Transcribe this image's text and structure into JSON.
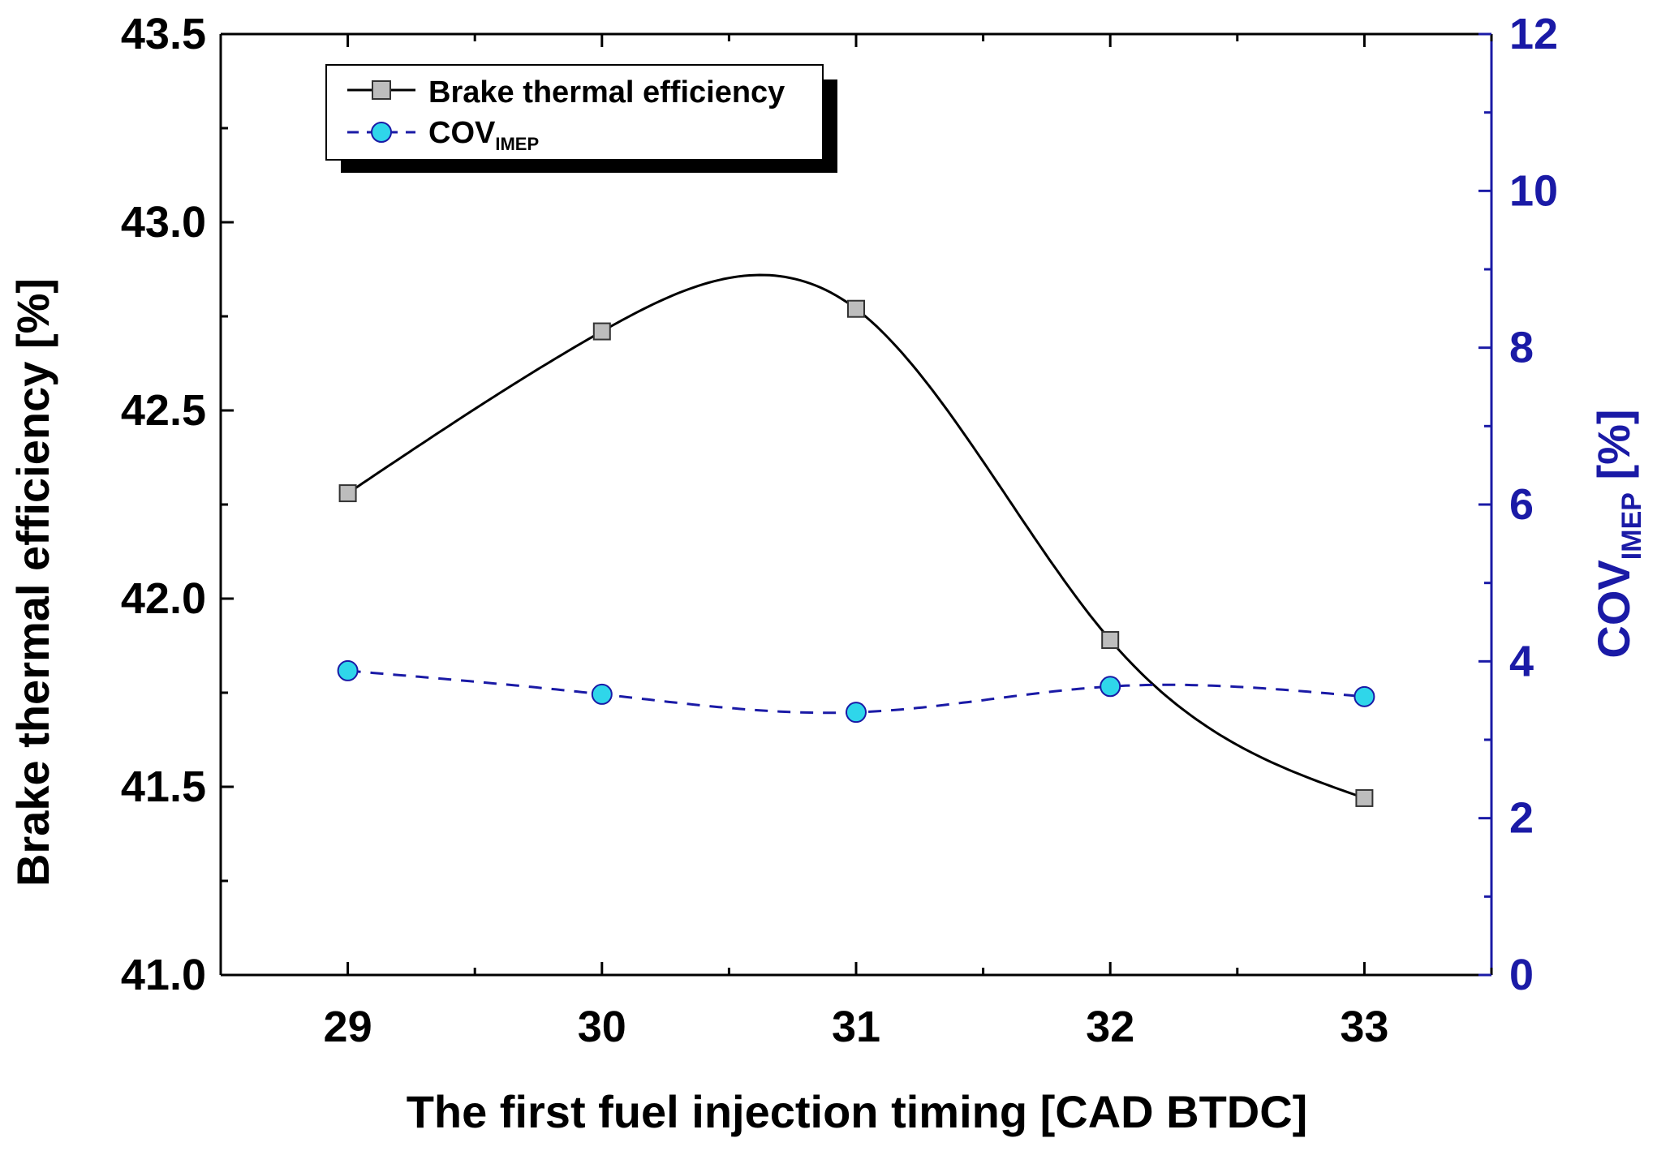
{
  "chart_data": {
    "type": "line",
    "xlabel": "The first fuel injection timing [CAD BTDC]",
    "ylabel": "Brake thermal efficiency [%]",
    "y2label_main": "COV",
    "y2label_sub": "IMEP",
    "y2label_suffix": " [%]",
    "x": [
      29,
      30,
      31,
      32,
      33
    ],
    "xlim": [
      28.5,
      33.5
    ],
    "ylim": [
      41.0,
      43.5
    ],
    "y2lim": [
      0,
      12
    ],
    "x_ticks": [
      "29",
      "30",
      "31",
      "32",
      "33"
    ],
    "y_ticks": [
      "41.0",
      "41.5",
      "42.0",
      "42.5",
      "43.0",
      "43.5"
    ],
    "y2_ticks": [
      "0",
      "2",
      "4",
      "6",
      "8",
      "10",
      "12"
    ],
    "grid": false,
    "legend_position": "top-left",
    "series": [
      {
        "name": "Brake thermal efficiency",
        "axis": "left",
        "values": [
          42.28,
          42.71,
          42.77,
          41.89,
          41.47
        ],
        "line": "solid smooth fit",
        "marker": "square",
        "color": "#000000",
        "marker_fill": "#bdbdbd"
      },
      {
        "name_main": "COV",
        "name_sub": "IMEP",
        "axis": "right",
        "values": [
          3.88,
          3.58,
          3.35,
          3.68,
          3.55
        ],
        "line": "dashed smooth fit",
        "marker": "circle",
        "color": "#1a1aa6",
        "marker_fill": "#2fd6ea"
      }
    ],
    "right_axis_color": "#1a1aa6"
  }
}
